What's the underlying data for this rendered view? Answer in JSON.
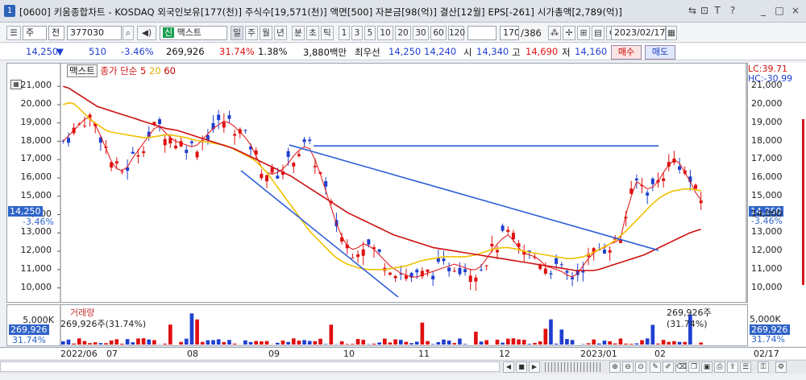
{
  "window": {
    "number": "1",
    "title": "[0600] 키움종합차트 - KOSDAQ 외국인보유[177(천)] 주식수[19,571(천)] 액면[500] 자본금[98(억)] 결산[12월] EPS[-261] 시가총액[2,789(억)]"
  },
  "window_controls": [
    "⇆",
    "⊡",
    "T",
    "?",
    "_",
    "□",
    "×"
  ],
  "toolbar": {
    "market": "주",
    "period_type": "전",
    "code": "377030",
    "stock_name": "맥스트",
    "badge": "신",
    "periods": [
      "일",
      "주",
      "월",
      "년",
      "분",
      "초",
      "틱"
    ],
    "minutes": [
      "1",
      "3",
      "5",
      "10",
      "20",
      "30",
      "60",
      "120"
    ],
    "count": "170",
    "total": "/386",
    "date": "2023/02/17"
  },
  "quote": {
    "price": "14,250",
    "arrow": "▼",
    "change": "510",
    "pct": "-3.46%",
    "volume": "269,926",
    "turnover": "31.74%",
    "vol_ratio": "1.38%",
    "amount": "3,880백만",
    "label_bid": "최우선",
    "bid1": "14,250",
    "bid2": "14,240",
    "open_label": "시",
    "open": "14,340",
    "high_label": "고",
    "high": "14,690",
    "low_label": "저",
    "low": "14,160",
    "buy": "매수",
    "sell": "매도"
  },
  "chart_legend": {
    "name": "맥스트",
    "ma_label": "종가 단순",
    "ma1": "5",
    "ma2": "20",
    "ma3": "60"
  },
  "chart_right": {
    "lc": "LC:39.71",
    "hc": "HC:-30.99",
    "price_tag": "14,250",
    "pct_tag": "-3.46%"
  },
  "vol_legend": {
    "title": "거래량",
    "value": "269,926주(31.74%)",
    "right": "269,926주(31.74%)",
    "axis_top": "5,000K",
    "tag1": "269,926",
    "tag2": "31.74%"
  },
  "x_labels": [
    "2022/06",
    "07",
    "08",
    "09",
    "10",
    "11",
    "12",
    "2023/01",
    "02",
    "02/17"
  ],
  "colors": {
    "up": "#e01010",
    "down": "#1f3fd0",
    "ma5": "#e01010",
    "ma20": "#f0c000",
    "ma60": "#cc1010",
    "trend": "#2f5fd8"
  },
  "chart_data": {
    "type": "candlestick",
    "ylim": [
      9500,
      21800
    ],
    "yticks": [
      10000,
      11000,
      12000,
      13000,
      14000,
      15000,
      16000,
      17000,
      18000,
      19000,
      20000,
      21000
    ],
    "series": [
      {
        "name": "MA 5",
        "values": [
          18000,
          18300,
          18600,
          18900,
          19200,
          19300,
          18900,
          18300,
          17600,
          16900,
          16500,
          16400,
          16600,
          17100,
          17500,
          17900,
          18300,
          18700,
          18800,
          18500,
          18200,
          18000,
          17900,
          17800,
          17700,
          17800,
          18100,
          18400,
          18700,
          18900,
          19100,
          19000,
          18800,
          18500,
          18200,
          17800,
          17200,
          16600,
          16300,
          16200,
          16300,
          16500,
          16800,
          17200,
          17500,
          17700,
          17600,
          17000,
          16200,
          15300,
          14400,
          13500,
          12800,
          12300,
          12100,
          12200,
          12400,
          12300,
          12100,
          11800,
          11500,
          11200,
          11000,
          10800,
          10700,
          10600,
          10600,
          10700,
          10800,
          10900,
          11000,
          11100,
          11200,
          11300,
          11200,
          11100,
          11000,
          11000,
          11200,
          11600,
          12000,
          12400,
          12700,
          12900,
          12600,
          12200,
          11900,
          11800,
          11700,
          11500,
          11200,
          11100,
          11000,
          10900,
          10700,
          10600,
          10800,
          11200,
          11600,
          11900,
          12100,
          12200,
          12400,
          12500,
          12700,
          14000,
          15000,
          15800,
          15600,
          15400,
          15500,
          15800,
          16300,
          16700,
          17000,
          16800,
          16300,
          15800,
          15200,
          14800
        ]
      },
      {
        "name": "MA 20",
        "values": [
          20000,
          20100,
          20050,
          19800,
          19500,
          19200,
          19000,
          18800,
          18600,
          18500,
          18450,
          18400,
          18350,
          18300,
          18250,
          18200,
          18200,
          18250,
          18300,
          18350,
          18350,
          18300,
          18250,
          18200,
          18100,
          18050,
          18000,
          17950,
          17900,
          17850,
          17800,
          17700,
          17550,
          17400,
          17250,
          17100,
          16900,
          16600,
          16300,
          15900,
          15500,
          15100,
          14700,
          14300,
          13900,
          13500,
          13100,
          12800,
          12500,
          12200,
          11900,
          11650,
          11450,
          11300,
          11200,
          11100,
          11050,
          11000,
          11000,
          11000,
          11000,
          11050,
          11100,
          11150,
          11200,
          11300,
          11400,
          11500,
          11550,
          11600,
          11650,
          11700,
          11700,
          11700,
          11700,
          11700,
          11750,
          11800,
          11900,
          12000,
          12100,
          12150,
          12200,
          12200,
          12150,
          12100,
          12000,
          11950,
          11900,
          11850,
          11800,
          11750,
          11700,
          11650,
          11600,
          11600,
          11650,
          11700,
          11800,
          11950,
          12100,
          12250,
          12400,
          12600,
          12850,
          13100,
          13400,
          13700,
          14000,
          14300,
          14600,
          14850,
          15050,
          15200,
          15300,
          15350,
          15400,
          15400,
          15350,
          15300
        ]
      },
      {
        "name": "MA 60",
        "values": [
          21000,
          20900,
          20700,
          20500,
          20300,
          20100,
          19900,
          19800,
          19700,
          19600,
          19500,
          19400,
          19300,
          19200,
          19100,
          19000,
          18900,
          18800,
          18700,
          18650,
          18600,
          18500,
          18400,
          18300,
          18200,
          18100,
          18000,
          17900,
          17800,
          17700,
          17600,
          17450,
          17300,
          17150,
          17000,
          16850,
          16700,
          16550,
          16400,
          16250,
          16100,
          15900,
          15700,
          15500,
          15300,
          15100,
          14900,
          14700,
          14500,
          14300,
          14100,
          13950,
          13800,
          13650,
          13500,
          13350,
          13200,
          13050,
          12900,
          12800,
          12700,
          12600,
          12500,
          12400,
          12300,
          12200,
          12150,
          12100,
          12050,
          12000,
          11950,
          11900,
          11850,
          11800,
          11750,
          11700,
          11650,
          11600,
          11550,
          11500,
          11450,
          11400,
          11350,
          11300,
          11250,
          11200,
          11150,
          11100,
          11050,
          11000,
          10950,
          10950,
          10950,
          10950,
          11000,
          11100,
          11200,
          11300,
          11400,
          11500,
          11600,
          11700,
          11800,
          11950,
          12100,
          12250,
          12400,
          12550,
          12700,
          12850,
          13000,
          13100,
          13200
        ]
      }
    ]
  }
}
